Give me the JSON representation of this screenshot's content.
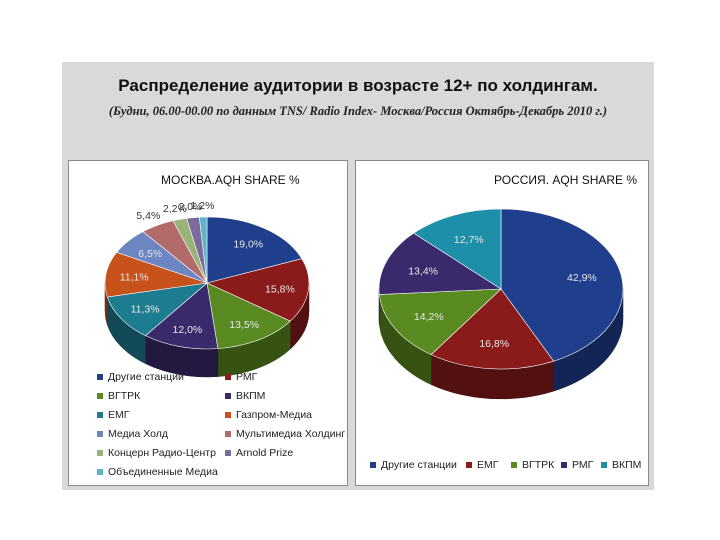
{
  "title": "Распределение аудитории  в возрасте 12+ по холдингам.",
  "subtitle": "(Будни, 06.00-00.00 по данным TNS/ Radio Index- Москва/Россия Октябрь-Декабрь 2010 г.)",
  "chart_data": [
    {
      "type": "pie",
      "title": "МОСКВА.AQH SHARE %",
      "categories": [
        "Другие станции",
        "РМГ",
        "ВГТРК",
        "ВКПМ",
        "ЕМГ",
        "Газпром-Медиа",
        "Медиа Холд",
        "Мультимедиа Холдинг",
        "Концерн Радио-Центр",
        "Arnold Prize",
        "Объединенные Медиа"
      ],
      "values": [
        19.0,
        15.8,
        13.5,
        12.0,
        11.3,
        11.1,
        6.5,
        5.4,
        2.2,
        2.0,
        1.2
      ],
      "labels": [
        "19,0%",
        "15,8%",
        "13,5%",
        "12,0%",
        "11,3%",
        "11,1%",
        "6,5%",
        "5,4%",
        "2,2%",
        "2,0%",
        "1,2%"
      ],
      "colors": [
        "#1f3e8c",
        "#8b1a1a",
        "#5a8a22",
        "#3a2a6b",
        "#1d7c8f",
        "#c8521b",
        "#6d86c2",
        "#b36a6a",
        "#9ab37a",
        "#7b6a9c",
        "#5fb4c9"
      ],
      "legend_position": "bottom"
    },
    {
      "type": "pie",
      "title": "РОССИЯ. AQH SHARE %",
      "categories": [
        "Другие станции",
        "ЕМГ",
        "ВГТРК",
        "РМГ",
        "ВКПМ"
      ],
      "values": [
        42.9,
        16.8,
        14.2,
        13.4,
        12.7
      ],
      "labels": [
        "42,9%",
        "16,8%",
        "14,2%",
        "13,4%",
        "12,7%"
      ],
      "colors": [
        "#1f3e8c",
        "#8b1a1a",
        "#5a8a22",
        "#3a2a6b",
        "#1d8fa8"
      ],
      "legend_order": [
        "Другие станции",
        "ЕМГ",
        "ВГТРК",
        "РМГ",
        "ВКПМ"
      ],
      "legend_position": "bottom"
    }
  ]
}
